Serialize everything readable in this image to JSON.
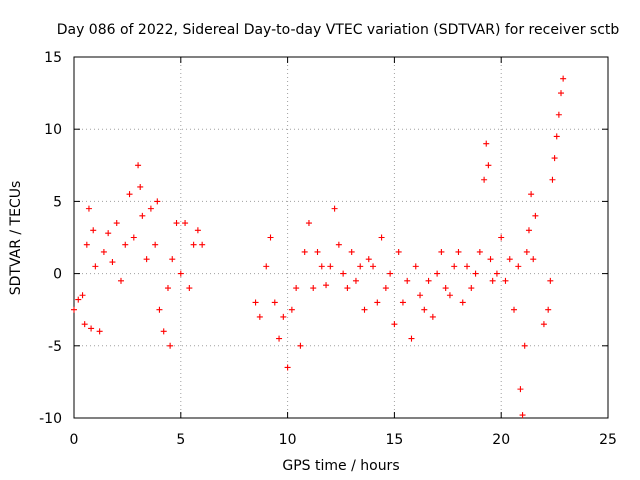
{
  "chart_data": {
    "type": "scatter",
    "title": "Day 086 of 2022, Sidereal Day-to-day VTEC variation (SDTVAR) for receiver sctb",
    "xlabel": "GPS time / hours",
    "ylabel": "SDTVAR / TECUs",
    "xlim": [
      0,
      25
    ],
    "ylim": [
      -10,
      15
    ],
    "xticks": [
      0,
      5,
      10,
      15,
      20,
      25
    ],
    "yticks": [
      -10,
      -5,
      0,
      5,
      10,
      15
    ],
    "xtick_labels": [
      "0",
      "5",
      "10",
      "15",
      "20",
      "25"
    ],
    "ytick_labels": [
      "-10",
      "-5",
      "0",
      "5",
      "10",
      "15"
    ],
    "grid": true,
    "marker": "plus",
    "color": "#ff0000",
    "series": [
      {
        "name": "SDTVAR",
        "x": [
          0.0,
          0.2,
          0.4,
          0.5,
          0.6,
          0.7,
          0.8,
          0.9,
          1.0,
          1.2,
          1.4,
          1.6,
          1.8,
          2.0,
          2.2,
          2.4,
          2.6,
          2.8,
          3.0,
          3.1,
          3.2,
          3.4,
          3.6,
          3.8,
          3.9,
          4.0,
          4.2,
          4.4,
          4.5,
          4.6,
          4.8,
          5.0,
          5.2,
          5.4,
          5.6,
          5.8,
          6.0,
          8.5,
          8.7,
          9.0,
          9.2,
          9.4,
          9.6,
          9.8,
          10.0,
          10.2,
          10.4,
          10.6,
          10.8,
          11.0,
          11.2,
          11.4,
          11.6,
          11.8,
          12.0,
          12.2,
          12.4,
          12.6,
          12.8,
          13.0,
          13.2,
          13.4,
          13.6,
          13.8,
          14.0,
          14.2,
          14.4,
          14.6,
          14.8,
          15.0,
          15.2,
          15.4,
          15.6,
          15.8,
          16.0,
          16.2,
          16.4,
          16.6,
          16.8,
          17.0,
          17.2,
          17.4,
          17.6,
          17.8,
          18.0,
          18.2,
          18.4,
          18.6,
          18.8,
          19.0,
          19.2,
          19.3,
          19.4,
          19.5,
          19.6,
          19.8,
          20.0,
          20.2,
          20.4,
          20.6,
          20.8,
          20.9,
          21.0,
          21.1,
          21.2,
          21.3,
          21.4,
          21.5,
          21.6,
          22.0,
          22.2,
          22.3,
          22.4,
          22.5,
          22.6,
          22.7,
          22.8,
          22.9
        ],
        "y": [
          -2.5,
          -1.8,
          -1.5,
          -3.5,
          2.0,
          4.5,
          -3.8,
          3.0,
          0.5,
          -4.0,
          1.5,
          2.8,
          0.8,
          3.5,
          -0.5,
          2.0,
          5.5,
          2.5,
          7.5,
          6.0,
          4.0,
          1.0,
          4.5,
          2.0,
          5.0,
          -2.5,
          -4.0,
          -1.0,
          -5.0,
          1.0,
          3.5,
          0.0,
          3.5,
          -1.0,
          2.0,
          3.0,
          2.0,
          -2.0,
          -3.0,
          0.5,
          2.5,
          -2.0,
          -4.5,
          -3.0,
          -6.5,
          -2.5,
          -1.0,
          -5.0,
          1.5,
          3.5,
          -1.0,
          1.5,
          0.5,
          -0.8,
          0.5,
          4.5,
          2.0,
          0.0,
          -1.0,
          1.5,
          -0.5,
          0.5,
          -2.5,
          1.0,
          0.5,
          -2.0,
          2.5,
          -1.0,
          0.0,
          -3.5,
          1.5,
          -2.0,
          -0.5,
          -4.5,
          0.5,
          -1.5,
          -2.5,
          -0.5,
          -3.0,
          0.0,
          1.5,
          -1.0,
          -1.5,
          0.5,
          1.5,
          -2.0,
          0.5,
          -1.0,
          0.0,
          1.5,
          6.5,
          9.0,
          7.5,
          1.0,
          -0.5,
          0.0,
          2.5,
          -0.5,
          1.0,
          -2.5,
          0.5,
          -8.0,
          -9.8,
          -5.0,
          1.5,
          3.0,
          5.5,
          1.0,
          4.0,
          -3.5,
          -2.5,
          -0.5,
          6.5,
          8.0,
          9.5,
          11.0,
          12.5,
          13.5
        ]
      }
    ]
  }
}
